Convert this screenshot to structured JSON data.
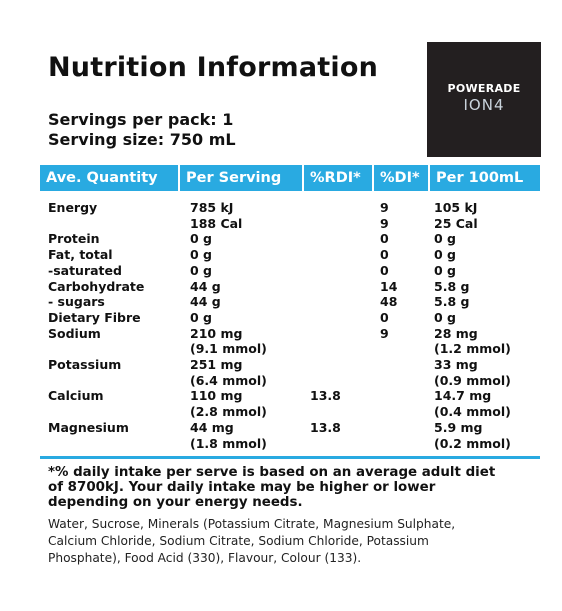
{
  "title": "Nutrition Information",
  "logo": {
    "brand": "POWERADE",
    "product": "ION4"
  },
  "servings": [
    "Servings per pack: 1",
    "Serving size: 750 mL"
  ],
  "table": {
    "headers": [
      "Ave. Quantity",
      "Per Serving",
      "%RDI*",
      "%DI*",
      "Per 100mL"
    ],
    "rows": [
      {
        "name": "Energy",
        "serving": [
          "785 kJ",
          "188 Cal"
        ],
        "di": [
          "9",
          "9"
        ],
        "per100": [
          "105 kJ",
          "25 Cal"
        ]
      },
      {
        "name": "Protein",
        "serving": [
          "0 g"
        ],
        "di": [
          "0"
        ],
        "per100": [
          "0 g"
        ]
      },
      {
        "name": "Fat, total",
        "serving": [
          "0 g"
        ],
        "di": [
          "0"
        ],
        "per100": [
          "0 g"
        ]
      },
      {
        "name": "-saturated",
        "serving": [
          "0 g"
        ],
        "di": [
          "0"
        ],
        "per100": [
          "0 g"
        ]
      },
      {
        "name": "Carbohydrate",
        "serving": [
          "44 g"
        ],
        "di": [
          "14"
        ],
        "per100": [
          "5.8 g"
        ]
      },
      {
        "name": "- sugars",
        "serving": [
          "44 g"
        ],
        "di": [
          "48"
        ],
        "per100": [
          "5.8 g"
        ]
      },
      {
        "name": "Dietary Fibre",
        "serving": [
          "0 g"
        ],
        "di": [
          "0"
        ],
        "per100": [
          "0 g"
        ]
      },
      {
        "name": "Sodium",
        "serving": [
          "210 mg",
          "(9.1 mmol)"
        ],
        "di": [
          "9"
        ],
        "per100": [
          "28 mg",
          "(1.2 mmol)"
        ]
      },
      {
        "name": "Potassium",
        "serving": [
          "251 mg",
          "(6.4 mmol)"
        ],
        "per100": [
          "33 mg",
          "(0.9 mmol)"
        ]
      },
      {
        "name": "Calcium",
        "serving": [
          "110 mg",
          "(2.8 mmol)"
        ],
        "rdi": [
          "13.8"
        ],
        "per100": [
          "14.7 mg",
          "(0.4 mmol)"
        ]
      },
      {
        "name": "Magnesium",
        "serving": [
          "44 mg",
          "(1.8 mmol)"
        ],
        "rdi": [
          "13.8"
        ],
        "per100": [
          "5.9 mg",
          "(0.2 mmol)"
        ]
      }
    ]
  },
  "footnote": [
    "*% daily intake per serve is based on an average adult diet",
    "of 8700kJ. Your daily intake may be higher or lower",
    "depending on your energy needs."
  ],
  "ingredients": [
    "Water, Sucrose, Minerals (Potassium Citrate, Magnesium Sulphate,",
    "Calcium Chloride, Sodium Citrate, Sodium Chloride, Potassium",
    "Phosphate), Food Acid (330), Flavour, Colour (133)."
  ]
}
